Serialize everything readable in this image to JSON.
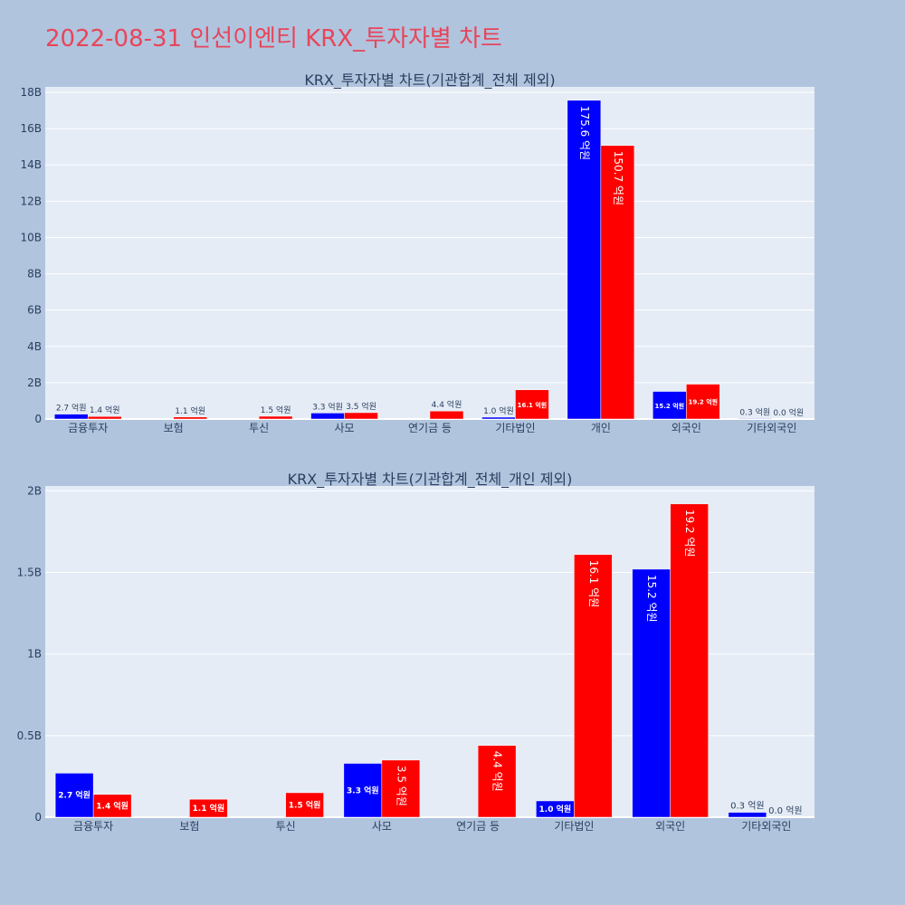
{
  "page": {
    "title": "2022-08-31 인선이엔티 KRX_투자자별 차트"
  },
  "colors": {
    "buy": "#0000ff",
    "sell": "#ff0000",
    "plot_bg": "#e5ecf6",
    "page_bg": "#b0c4de",
    "title": "#e8455a"
  },
  "chart_data": [
    {
      "type": "bar",
      "title": "KRX_투자자별 차트(기관합계_전체 제외)",
      "categories": [
        "금융투자",
        "보험",
        "투신",
        "사모",
        "연기금 등",
        "기타법인",
        "개인",
        "외국인",
        "기타외국인"
      ],
      "series": [
        {
          "values": [
            270000000,
            0,
            0,
            330000000,
            0,
            100000000,
            17560000000,
            1520000000,
            30000000
          ],
          "labels": [
            "2.7 억원",
            "",
            "",
            "3.3 억원",
            "",
            "1.0 억원",
            "175.6 억원",
            "15.2 억원",
            "0.3 억원"
          ]
        },
        {
          "values": [
            140000000,
            110000000,
            150000000,
            350000000,
            440000000,
            1610000000,
            15070000000,
            1920000000,
            0
          ],
          "labels": [
            "1.4 억원",
            "1.1 억원",
            "1.5 억원",
            "3.5 억원",
            "4.4 억원",
            "16.1 억원",
            "150.7 억원",
            "19.2 억원",
            "0.0 억원"
          ]
        }
      ],
      "yticks": [
        0,
        2000000000,
        4000000000,
        6000000000,
        8000000000,
        10000000000,
        12000000000,
        14000000000,
        16000000000,
        18000000000
      ],
      "ytick_labels": [
        "0",
        "2B",
        "4B",
        "6B",
        "8B",
        "10B",
        "12B",
        "14B",
        "16B",
        "18B"
      ],
      "ylim": [
        0,
        18300000000
      ],
      "grid": true,
      "legend": "none"
    },
    {
      "type": "bar",
      "title": "KRX_투자자별 차트(기관합계_전체_개인 제외)",
      "categories": [
        "금융투자",
        "보험",
        "투신",
        "사모",
        "연기금 등",
        "기타법인",
        "외국인",
        "기타외국인"
      ],
      "series": [
        {
          "values": [
            270000000,
            0,
            0,
            330000000,
            0,
            100000000,
            1520000000,
            30000000
          ],
          "labels": [
            "2.7 억원",
            "",
            "",
            "3.3 억원",
            "",
            "1.0 억원",
            "15.2 억원",
            "0.3 억원"
          ]
        },
        {
          "values": [
            140000000,
            110000000,
            150000000,
            350000000,
            440000000,
            1610000000,
            1920000000,
            0
          ],
          "labels": [
            "1.4 억원",
            "1.1 억원",
            "1.5 억원",
            "3.5 억원",
            "4.4 억원",
            "16.1 억원",
            "19.2 억원",
            "0.0 억원"
          ]
        }
      ],
      "yticks": [
        0,
        500000000,
        1000000000,
        1500000000,
        2000000000
      ],
      "ytick_labels": [
        "0",
        "0.5B",
        "1B",
        "1.5B",
        "2B"
      ],
      "ylim": [
        0,
        2030000000
      ],
      "grid": true,
      "legend": "none"
    }
  ]
}
